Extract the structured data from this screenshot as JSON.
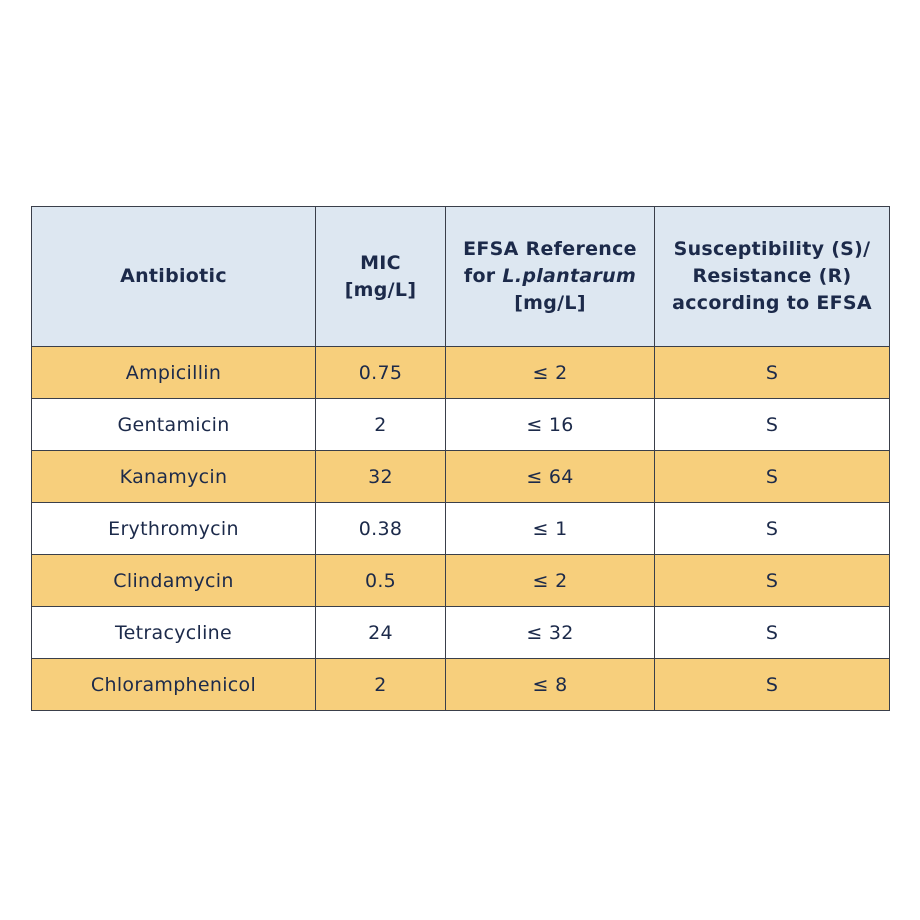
{
  "table": {
    "headers": {
      "antibiotic": "Antibiotic",
      "mic_line1": "MIC",
      "mic_line2": "[mg/L]",
      "efsa_line1": "EFSA Reference",
      "efsa_line2_prefix": "for ",
      "efsa_line2_species": "L.plantarum",
      "efsa_line3": "[mg/L]",
      "susc_line1": "Susceptibility (S)/",
      "susc_line2": "Resistance (R)",
      "susc_line3": "according to EFSA"
    },
    "rows": [
      {
        "antibiotic": "Ampicillin",
        "mic": "0.75",
        "efsa": "≤ 2",
        "result": "S"
      },
      {
        "antibiotic": "Gentamicin",
        "mic": "2",
        "efsa": "≤ 16",
        "result": "S"
      },
      {
        "antibiotic": "Kanamycin",
        "mic": "32",
        "efsa": "≤ 64",
        "result": "S"
      },
      {
        "antibiotic": "Erythromycin",
        "mic": "0.38",
        "efsa": "≤ 1",
        "result": "S"
      },
      {
        "antibiotic": "Clindamycin",
        "mic": "0.5",
        "efsa": "≤ 2",
        "result": "S"
      },
      {
        "antibiotic": "Tetracycline",
        "mic": "24",
        "efsa": "≤ 32",
        "result": "S"
      },
      {
        "antibiotic": "Chloramphenicol",
        "mic": "2",
        "efsa": "≤ 8",
        "result": "S"
      }
    ]
  },
  "colors": {
    "header_bg": "#dde7f1",
    "highlight_row_bg": "#f7cf7c",
    "plain_row_bg": "#ffffff",
    "text": "#1c2a4a",
    "border": "#3a3f4a"
  }
}
